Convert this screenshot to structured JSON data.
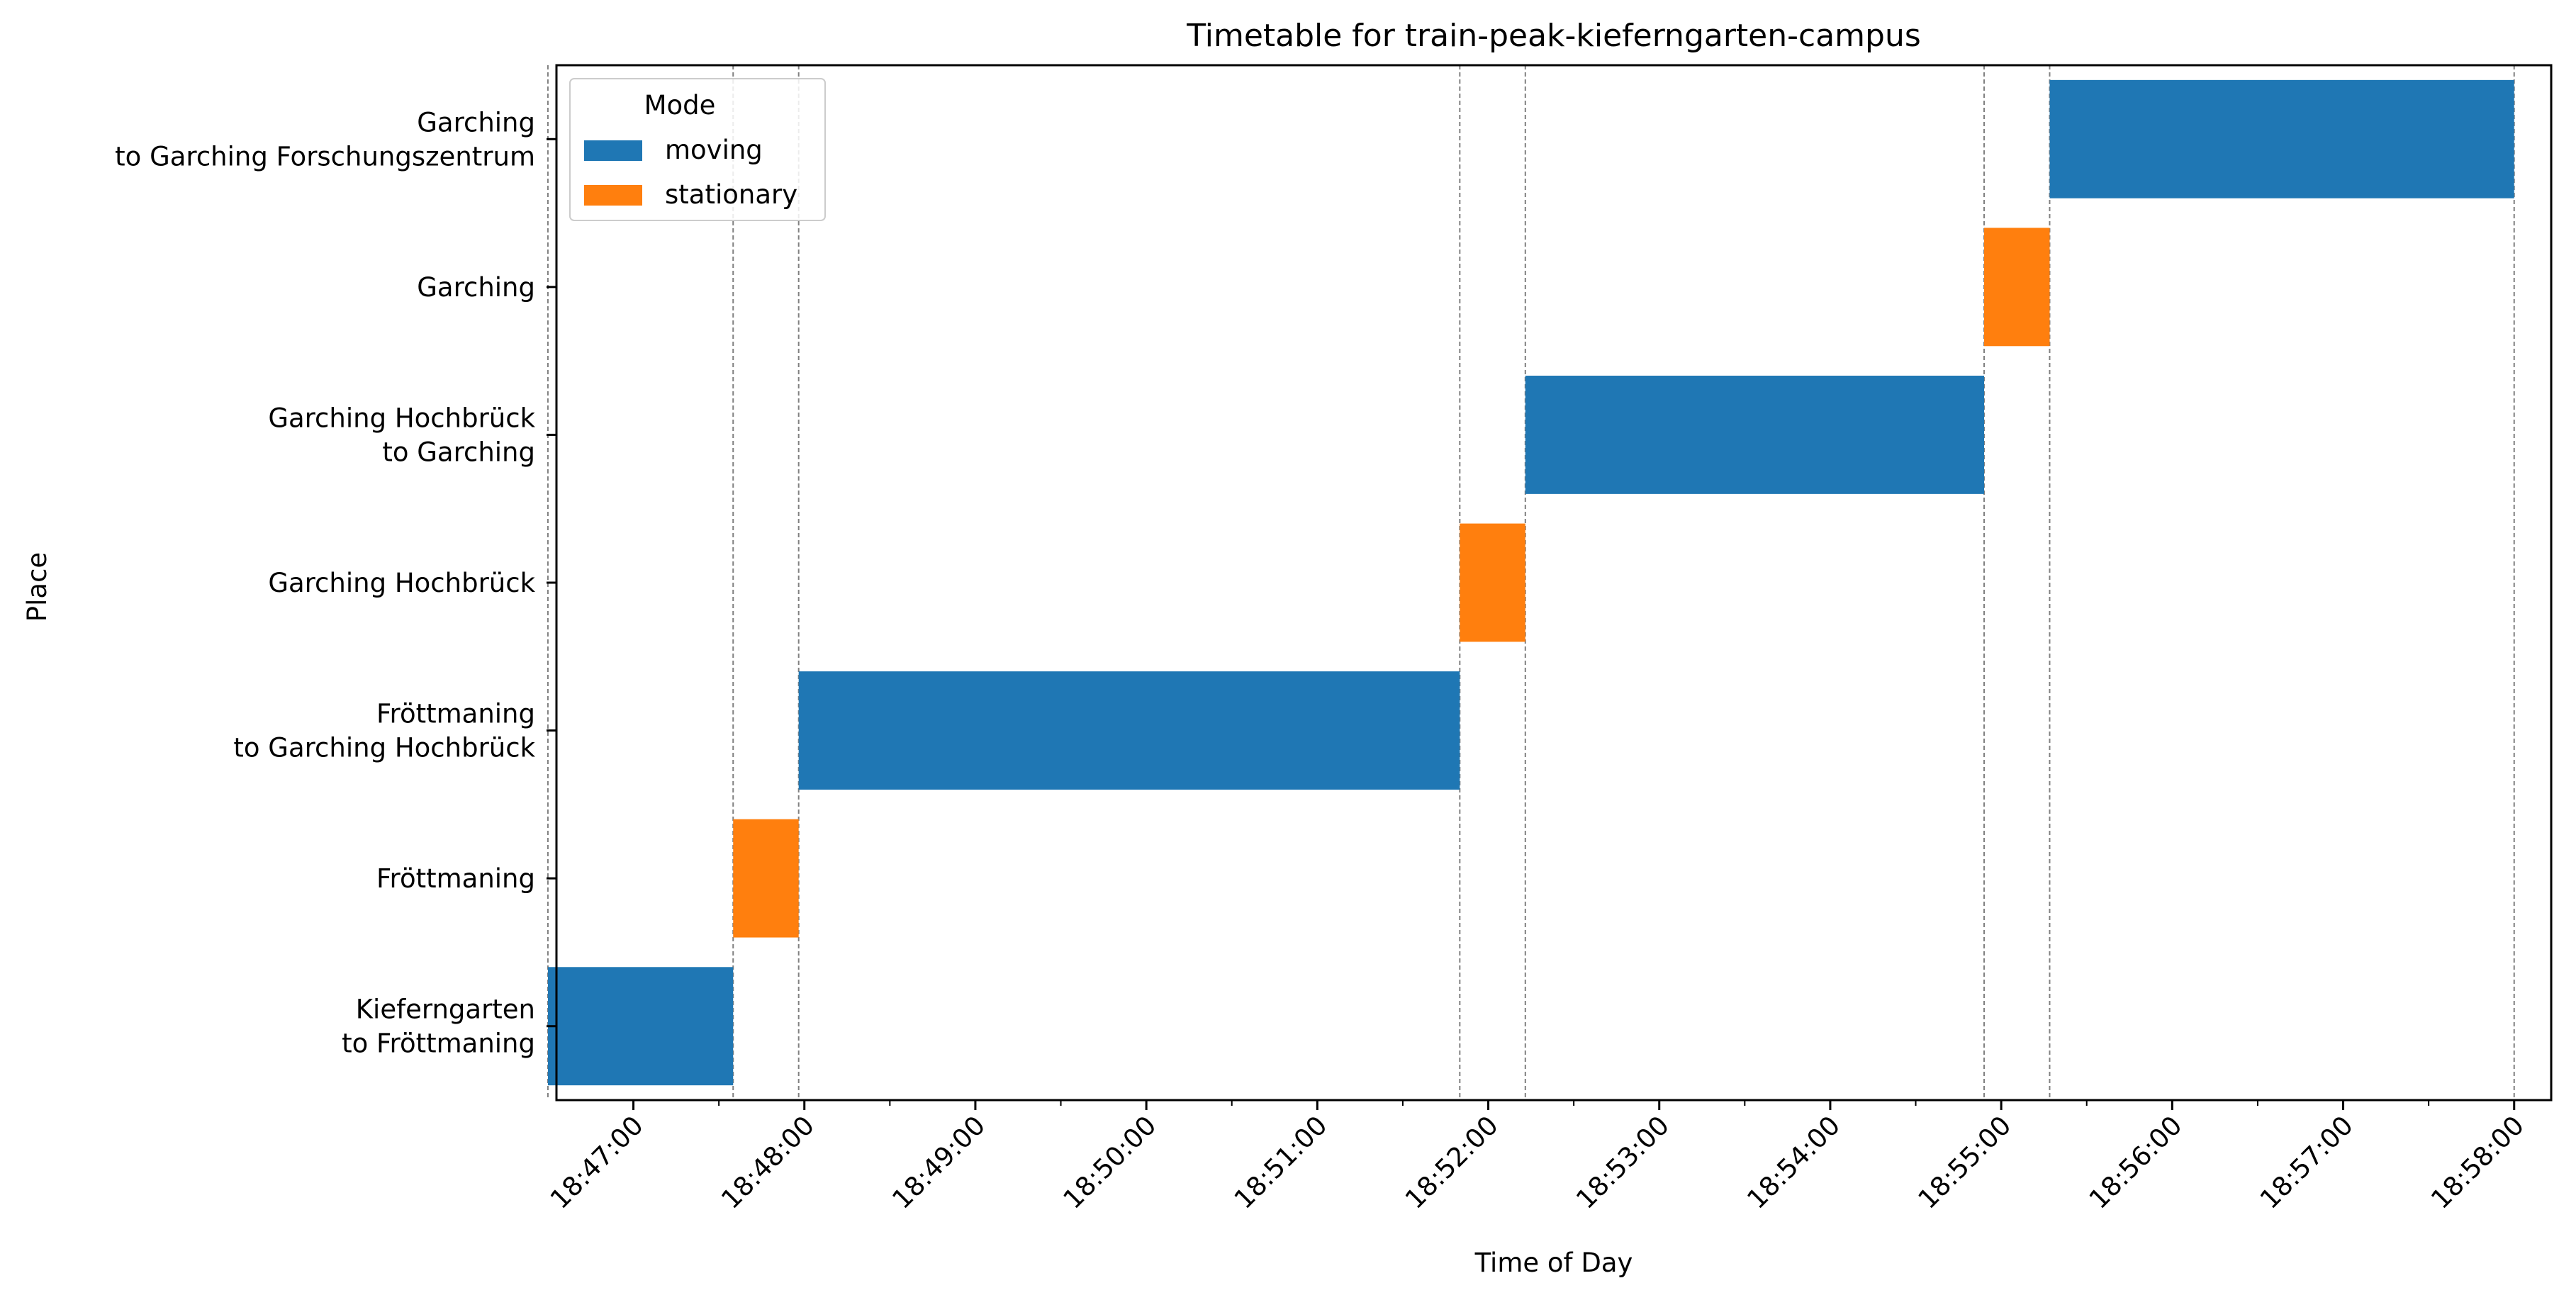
{
  "chart_data": {
    "type": "gantt",
    "title": "Timetable for train-peak-kieferngarten-campus",
    "xlabel": "Time of Day",
    "ylabel": "Place",
    "x_ticks": [
      "18:47:00",
      "18:48:00",
      "18:49:00",
      "18:50:00",
      "18:51:00",
      "18:52:00",
      "18:53:00",
      "18:54:00",
      "18:55:00",
      "18:56:00",
      "18:57:00",
      "18:58:00"
    ],
    "xlim": [
      "18:46:33",
      "18:58:13"
    ],
    "categories": [
      [
        "Kieferngarten",
        "to Fröttmaning"
      ],
      [
        "Fröttmaning"
      ],
      [
        "Fröttmaning",
        "to Garching Hochbrück"
      ],
      [
        "Garching Hochbrück"
      ],
      [
        "Garching Hochbrück",
        "to Garching"
      ],
      [
        "Garching"
      ],
      [
        "Garching",
        "to Garching Forschungszentrum"
      ]
    ],
    "legend": {
      "title": "Mode",
      "placement": "top-left",
      "entries": [
        {
          "label": "moving",
          "color": "#1f77b4"
        },
        {
          "label": "stationary",
          "color": "#ff7f0e"
        }
      ]
    },
    "segments": [
      {
        "place_index": 0,
        "mode": "moving",
        "start": "18:46:30",
        "end": "18:47:35"
      },
      {
        "place_index": 1,
        "mode": "stationary",
        "start": "18:47:35",
        "end": "18:47:58"
      },
      {
        "place_index": 2,
        "mode": "moving",
        "start": "18:47:58",
        "end": "18:51:50"
      },
      {
        "place_index": 3,
        "mode": "stationary",
        "start": "18:51:50",
        "end": "18:52:13"
      },
      {
        "place_index": 4,
        "mode": "moving",
        "start": "18:52:13",
        "end": "18:54:54"
      },
      {
        "place_index": 5,
        "mode": "stationary",
        "start": "18:54:54",
        "end": "18:55:17"
      },
      {
        "place_index": 6,
        "mode": "moving",
        "start": "18:55:17",
        "end": "18:58:00"
      }
    ],
    "boundary_lines": [
      "18:46:30",
      "18:47:35",
      "18:47:58",
      "18:51:50",
      "18:52:13",
      "18:54:54",
      "18:55:17",
      "18:58:00"
    ],
    "minor_ticks_per_major": 2,
    "grid": false
  }
}
